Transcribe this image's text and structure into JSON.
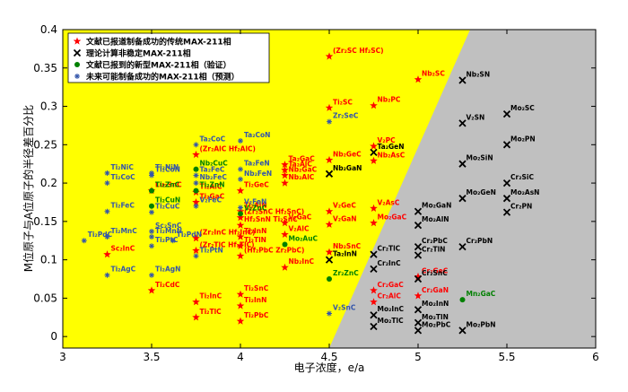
{
  "chart_data": {
    "type": "scatter",
    "xlabel": "电子浓度，e/a",
    "ylabel": "M位原子与A位原子的半径差百分比",
    "xlim": [
      3,
      6
    ],
    "ylim": [
      -0.015,
      0.4
    ],
    "xticks": [
      3,
      3.5,
      4,
      4.5,
      5,
      5.5,
      6
    ],
    "yticks": [
      0,
      0.05,
      0.1,
      0.15,
      0.2,
      0.25,
      0.3,
      0.35,
      0.4
    ],
    "legend": "upper left",
    "series": [
      {
        "name": "文献已报道制备成功的传统MAX-211相",
        "marker": "star",
        "color": "#ff0000",
        "labels": [
          "(Zr₂SC Hf₂SC)",
          "Nb₂SC",
          "Ti₂SC",
          "Nb₂PC",
          "V₂PC",
          "Nb₂GeC",
          "Nb₂AsC",
          "Ta₂GaC",
          "Ta₂AlC",
          "Nb₂GaC",
          "Nb₂AlC",
          "Ti₂GeC",
          "Ti₂AlC",
          "Ti₂GaC",
          "Ti₂AlN",
          "V₂GeC",
          "V₂AsC",
          "Mo₂GaC",
          "V₂GaC",
          "V₂GaN",
          "V₂AlC",
          "(Zr₂SnC Hf₂SnC)",
          "Hf₂SnN Ti₂SnC",
          "(Zr₂InC Hf₂InC)",
          "Ti₂InN",
          "Ti₂TlN",
          "(Zr₂TlC Hf₂TlC)",
          "(Hf₂PbC Zr₂PbC)",
          "Nb₂SnC",
          "Nb₂InC",
          "Ti₂CdC",
          "Ti₂InC",
          "Ti₂SnC",
          "Ti₂InN",
          "Ti₂TlC",
          "Ti₂PbC",
          "Cr₂GeC",
          "Cr₂GaC",
          "Cr₂GaN",
          "Cr₂AlC",
          "Lu₂SnC",
          "Sc₂InC",
          "(Zr₂AlC Hf₂AlC)"
        ],
        "x": [
          4.5,
          5,
          4.5,
          4.75,
          4.75,
          4.5,
          4.75,
          4.25,
          4.25,
          4.25,
          4.25,
          4,
          3.75,
          3.75,
          4,
          4.5,
          4.75,
          4.75,
          4.25,
          4.5,
          4.25,
          4,
          4,
          3.75,
          4,
          4,
          3.75,
          4,
          4.5,
          4.25,
          3.5,
          3.75,
          4,
          4,
          3.75,
          4,
          5,
          4.75,
          5,
          4.75,
          3.5,
          3.25,
          3.75
        ],
        "y": [
          0.365,
          0.335,
          0.298,
          0.301,
          0.248,
          0.23,
          0.229,
          0.224,
          0.217,
          0.21,
          0.2,
          0.19,
          0.188,
          0.175,
          0.163,
          0.163,
          0.167,
          0.148,
          0.148,
          0.146,
          0.133,
          0.155,
          0.145,
          0.128,
          0.13,
          0.118,
          0.112,
          0.105,
          0.11,
          0.09,
          0.06,
          0.045,
          0.055,
          0.04,
          0.025,
          0.02,
          0.078,
          0.06,
          0.053,
          0.045,
          0.19,
          0.107,
          0.237
        ]
      },
      {
        "name": "理论计算非稳定MAX-211相",
        "marker": "x",
        "color": "#000000",
        "labels": [
          "Nb₂SN",
          "V₂SN",
          "Mo₂SC",
          "Mo₂PN",
          "Ta₂GeN",
          "Nb₂GaN",
          "Mo₂SiN",
          "Cr₂SiC",
          "Mo₂GeN",
          "Mo₂AsN",
          "Cr₂PN",
          "Mo₂GaN",
          "Mo₂AlN",
          "Cr₂PbN",
          "Cr₂TlC",
          "Cr₂PbC",
          "Cr₂TlN",
          "Ta₂InN",
          "Cr₂InC",
          "Cr₂SnC",
          "Mo₂InN",
          "Mo₂InC",
          "Mo₂TlC",
          "Mo₂TlN",
          "Mo₂PbC",
          "Mo₂PbN"
        ],
        "x": [
          5.25,
          5.25,
          5.5,
          5.5,
          4.75,
          4.5,
          5.25,
          5.5,
          5.25,
          5.5,
          5.5,
          5,
          5,
          5.25,
          4.75,
          5,
          5,
          4.5,
          4.75,
          5,
          5,
          4.75,
          4.75,
          5,
          5,
          5.25
        ],
        "y": [
          0.334,
          0.278,
          0.29,
          0.25,
          0.24,
          0.212,
          0.225,
          0.2,
          0.18,
          0.18,
          0.162,
          0.163,
          0.145,
          0.117,
          0.107,
          0.117,
          0.106,
          0.1,
          0.088,
          0.075,
          0.035,
          0.028,
          0.013,
          0.018,
          0.008,
          0.008
        ]
      },
      {
        "name": "文献已报到的新型MAX-211相（验证）",
        "marker": "dot",
        "color": "#008000",
        "labels": [
          "Nb₂CuC",
          "Ti₂ZnC",
          "Ti₂CuN",
          "Ti₂ZnN",
          "V₂ZnC",
          "Mo₂AuC",
          "Zr₂ZnC",
          "Mn₂GaC"
        ],
        "x": [
          3.75,
          3.5,
          3.5,
          3.75,
          4,
          4.25,
          4.5,
          5.25
        ],
        "y": [
          0.218,
          0.19,
          0.17,
          0.19,
          0.16,
          0.12,
          0.075,
          0.048
        ]
      },
      {
        "name": "未来可能制备成功的MAX-211相（预测）",
        "marker": "asterisk",
        "color": "#3355aa",
        "labels": [
          "Ta₂CoC",
          "Ta₂CoN",
          "Ti₂NiC",
          "Ti₂CoN",
          "Ti₂CoC",
          "Ti₂NiN",
          "Ta₂FeN",
          "Ta₂FeC",
          "Nb₂FeN",
          "Nb₂FeC",
          "Ti₂FeC",
          "Ti₂CuC",
          "V₂FeC",
          "V₂FeN",
          "Sc₂SnC",
          "Ti₂PdC",
          "Ti₂MnC",
          "Ti₂MnN",
          "Ti₂PtC",
          "Ti₂PdN",
          "Ti₂PtN",
          "Ti₂AgC",
          "Ti₂AgN",
          "Zr₂SeC",
          "V₂SnC"
        ],
        "x": [
          3.75,
          4,
          3.25,
          3.5,
          3.25,
          3.5,
          4,
          3.75,
          4,
          3.75,
          3.25,
          3.5,
          3.75,
          4,
          3.5,
          3.12,
          3.25,
          3.5,
          3.5,
          3.62,
          3.75,
          3.25,
          3.5,
          4.5,
          4.5
        ],
        "y": [
          0.25,
          0.255,
          0.213,
          0.21,
          0.2,
          0.213,
          0.218,
          0.21,
          0.205,
          0.2,
          0.163,
          0.162,
          0.17,
          0.168,
          0.137,
          0.125,
          0.13,
          0.13,
          0.118,
          0.125,
          0.105,
          0.08,
          0.08,
          0.28,
          0.03
        ]
      }
    ]
  }
}
